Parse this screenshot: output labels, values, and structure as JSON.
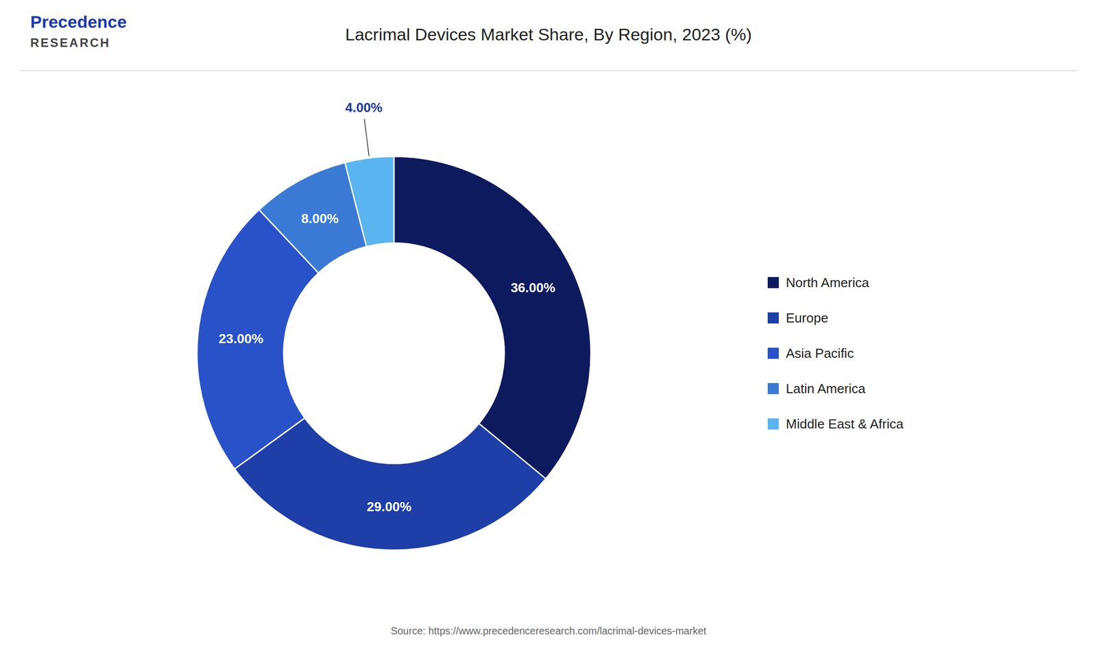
{
  "chart_data": {
    "type": "pie",
    "title": "Lacrimal Devices Market Share, By Region, 2023 (%)",
    "categories": [
      "North America",
      "Europe",
      "Asia Pacific",
      "Latin America",
      "Middle East & Africa"
    ],
    "values": [
      36.0,
      29.0,
      23.0,
      8.0,
      4.0
    ],
    "value_labels": [
      "36.00%",
      "29.00%",
      "23.00%",
      "8.00%",
      "4.00%"
    ],
    "colors": [
      "#0d1a5e",
      "#1e3ea8",
      "#2952c8",
      "#3a7ad4",
      "#5ab4f0"
    ],
    "data_labels": true,
    "legend": "right",
    "annotations": [
      "Precedence",
      "RESEARCH"
    ],
    "source": "Source: https://www.precedenceresearch.com/lacrimal-devices-market"
  }
}
